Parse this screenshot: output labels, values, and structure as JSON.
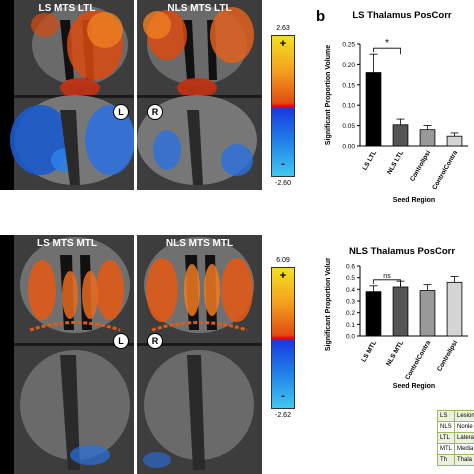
{
  "panel_b_label": "b",
  "top": {
    "ls_title": "LS MTS LTL",
    "nls_title": "NLS MTS LTL",
    "cbar_max": "2.63",
    "cbar_min": "-2.60",
    "marker_left": "L",
    "marker_right": "R"
  },
  "bottom": {
    "ls_title": "LS MTS MTL",
    "nls_title": "NLS MTS MTL",
    "cbar_max": "6.09",
    "cbar_min": "-2.62",
    "marker_left": "L",
    "marker_right": "R"
  },
  "colorbar": {
    "plus": "+",
    "minus": "-"
  },
  "chart_data": [
    {
      "type": "bar",
      "title": "LS Thalamus PosCorr",
      "xlabel": "Seed Region",
      "ylabel": "Significant Proportion Volume",
      "categories": [
        "LS LTL",
        "NLS LTL",
        "ControlIpsi",
        "ControlContra"
      ],
      "values": [
        0.18,
        0.052,
        0.04,
        0.024
      ],
      "errors": [
        0.045,
        0.014,
        0.01,
        0.008
      ],
      "ylim": [
        0,
        0.25
      ],
      "yticks": [
        "0.00",
        "0.05",
        "0.10",
        "0.15",
        "0.20",
        "0.25"
      ],
      "colors": [
        "#000000",
        "#555555",
        "#999999",
        "#d4d4d4"
      ],
      "significance": {
        "label": "*",
        "between": [
          0,
          1
        ]
      }
    },
    {
      "type": "bar",
      "title": "NLS Thalamus PosCorr",
      "xlabel": "Seed Region",
      "ylabel": "Significant Proportion Volume",
      "categories": [
        "LS MTL",
        "NLS MTL",
        "ControlContra",
        "ControlIpsi"
      ],
      "values": [
        0.38,
        0.42,
        0.39,
        0.46
      ],
      "errors": [
        0.05,
        0.05,
        0.05,
        0.05
      ],
      "ylim": [
        0,
        0.6
      ],
      "yticks": [
        "0.0",
        "0.1",
        "0.2",
        "0.3",
        "0.4",
        "0.5",
        "0.6"
      ],
      "colors": [
        "#000000",
        "#555555",
        "#999999",
        "#d4d4d4"
      ],
      "significance": {
        "label": "ns",
        "between": [
          0,
          1
        ]
      }
    }
  ],
  "abbreviations": [
    {
      "abbr": "LS",
      "text": "Lesion"
    },
    {
      "abbr": "NLS",
      "text": "Nonle"
    },
    {
      "abbr": "LTL",
      "text": "Latera"
    },
    {
      "abbr": "MTL",
      "text": "Media"
    },
    {
      "abbr": "Th",
      "text": "Thala"
    }
  ]
}
